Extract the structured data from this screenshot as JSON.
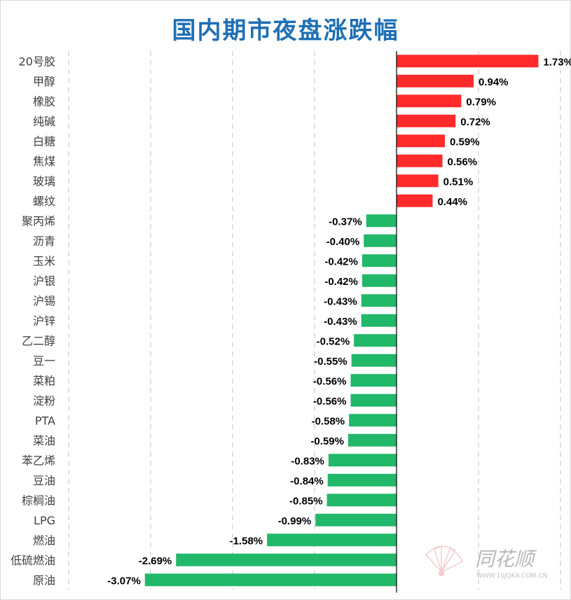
{
  "chart_data": {
    "type": "bar",
    "orientation": "horizontal",
    "title": "国内期市夜盘涨跌幅",
    "categories": [
      "20号胶",
      "甲醇",
      "橡胶",
      "纯碱",
      "白糖",
      "焦煤",
      "玻璃",
      "螺纹",
      "聚丙烯",
      "沥青",
      "玉米",
      "沪银",
      "沪锡",
      "沪锌",
      "乙二醇",
      "豆一",
      "菜粕",
      "淀粉",
      "PTA",
      "菜油",
      "苯乙烯",
      "豆油",
      "棕榈油",
      "LPG",
      "燃油",
      "低硫燃油",
      "原油"
    ],
    "values": [
      1.73,
      0.94,
      0.79,
      0.72,
      0.59,
      0.56,
      0.51,
      0.44,
      -0.37,
      -0.4,
      -0.42,
      -0.42,
      -0.43,
      -0.43,
      -0.52,
      -0.55,
      -0.56,
      -0.56,
      -0.58,
      -0.59,
      -0.83,
      -0.84,
      -0.85,
      -0.99,
      -1.58,
      -2.69,
      -3.07
    ],
    "labels": [
      "1.73%",
      "0.94%",
      "0.79%",
      "0.72%",
      "0.59%",
      "0.56%",
      "0.51%",
      "0.44%",
      "-0.37%",
      "-0.40%",
      "-0.42%",
      "-0.42%",
      "-0.43%",
      "-0.43%",
      "-0.52%",
      "-0.55%",
      "-0.56%",
      "-0.56%",
      "-0.58%",
      "-0.59%",
      "-0.83%",
      "-0.84%",
      "-0.85%",
      "-0.99%",
      "-1.58%",
      "-2.69%",
      "-3.07%"
    ],
    "xlim": [
      -4,
      2
    ],
    "grid": true,
    "colors": {
      "positive": "#ff2b2b",
      "negative": "#21b86a",
      "grid": "#d0d0d0",
      "axis": "#000000"
    }
  },
  "watermark": {
    "brand": "同花顺",
    "url": "WWW.10JQKA.COM.CN"
  }
}
